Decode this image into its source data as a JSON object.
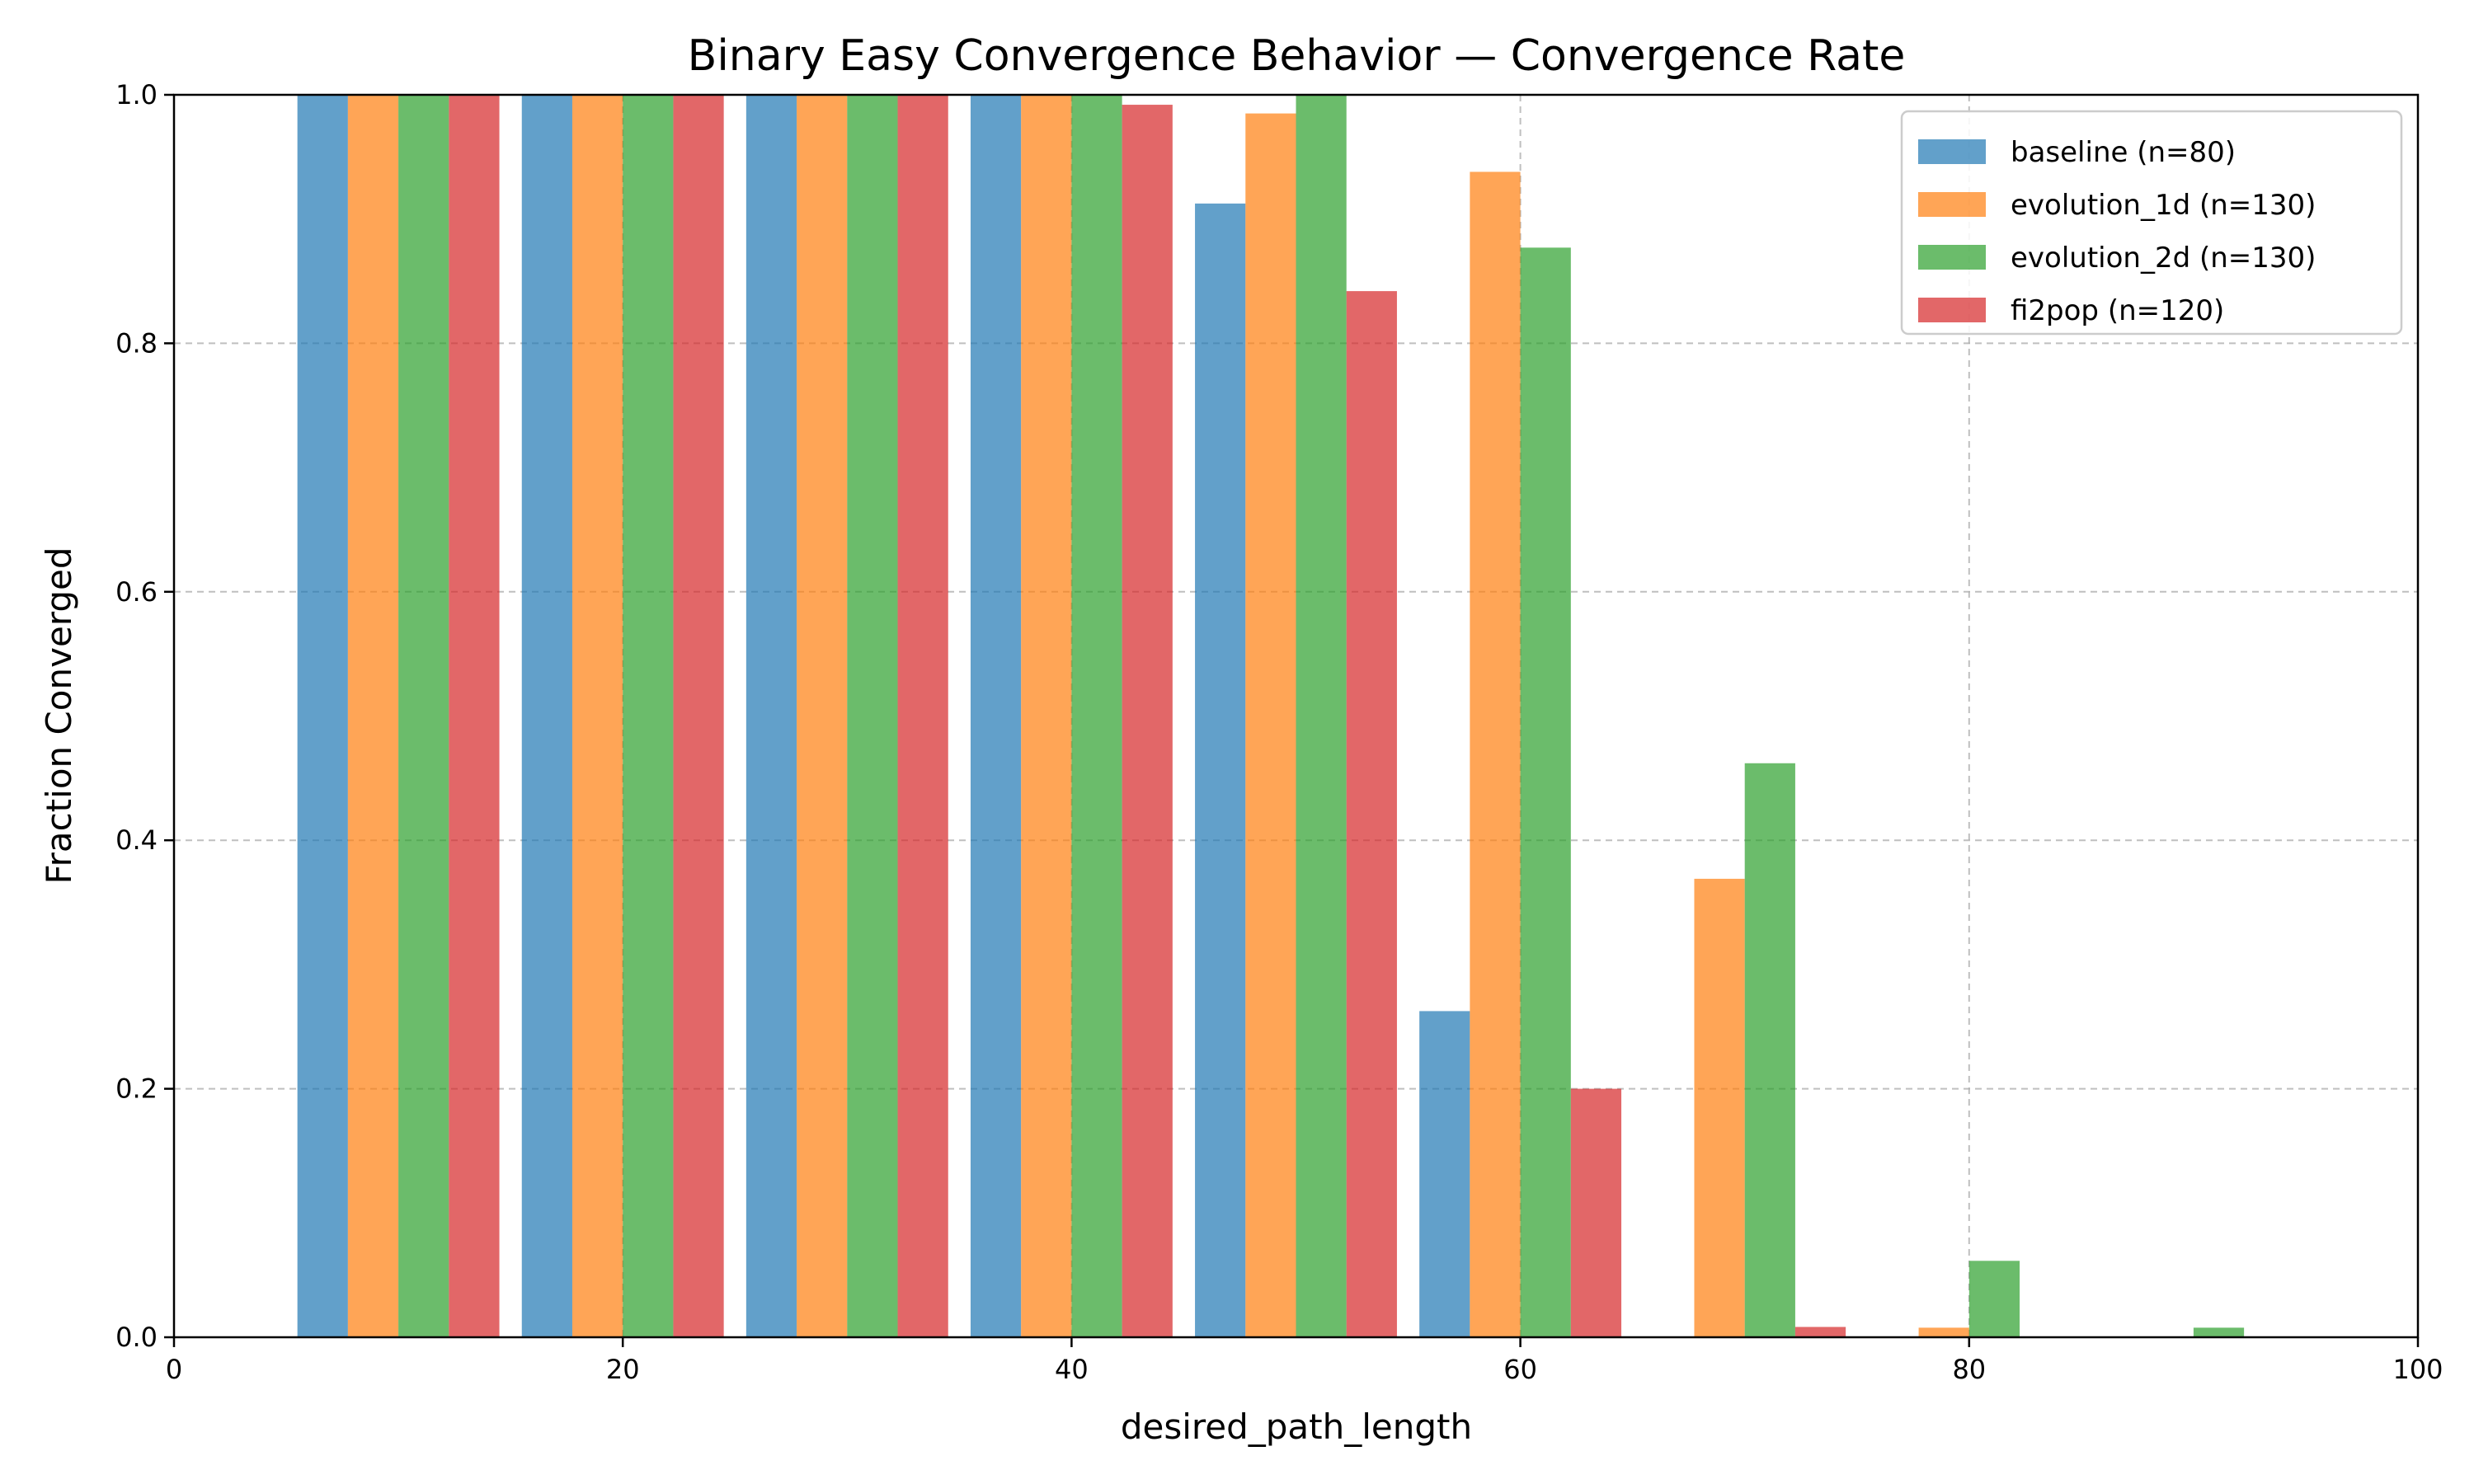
{
  "chart_data": {
    "type": "bar",
    "title": "Binary Easy Convergence Behavior — Convergence Rate",
    "xlabel": "desired_path_length",
    "ylabel": "Fraction Converged",
    "xlim": [
      0,
      100
    ],
    "ylim": [
      0,
      1.0
    ],
    "x_ticks": [
      0,
      20,
      40,
      60,
      80,
      100
    ],
    "y_ticks": [
      0.0,
      0.2,
      0.4,
      0.6,
      0.8,
      1.0
    ],
    "x_tick_labels": [
      "0",
      "20",
      "40",
      "60",
      "80",
      "100"
    ],
    "y_tick_labels": [
      "0.0",
      "0.2",
      "0.4",
      "0.6",
      "0.8",
      "1.0"
    ],
    "grid": true,
    "legend_position": "top-right",
    "bar_width": 2.25,
    "x": [
      10,
      20,
      30,
      40,
      50,
      60,
      70,
      80,
      90
    ],
    "series": [
      {
        "name": "baseline (n=80)",
        "color": "#1f77b4",
        "offset": -3.375,
        "values": [
          1.0,
          1.0,
          1.0,
          1.0,
          0.9125,
          0.2625,
          0.0,
          0.0,
          0.0
        ]
      },
      {
        "name": "evolution_1d (n=130)",
        "color": "#ff7f0e",
        "offset": -1.125,
        "values": [
          1.0,
          1.0,
          1.0,
          1.0,
          0.985,
          0.938,
          0.369,
          0.0077,
          0.0
        ]
      },
      {
        "name": "evolution_2d (n=130)",
        "color": "#2ca02c",
        "offset": 1.125,
        "values": [
          1.0,
          1.0,
          1.0,
          1.0,
          1.0,
          0.877,
          0.462,
          0.0615,
          0.0077
        ]
      },
      {
        "name": "fi2pop (n=120)",
        "color": "#d62728",
        "offset": 3.375,
        "values": [
          1.0,
          1.0,
          1.0,
          0.992,
          0.842,
          0.2,
          0.0083,
          0.0,
          0.0
        ]
      }
    ]
  }
}
